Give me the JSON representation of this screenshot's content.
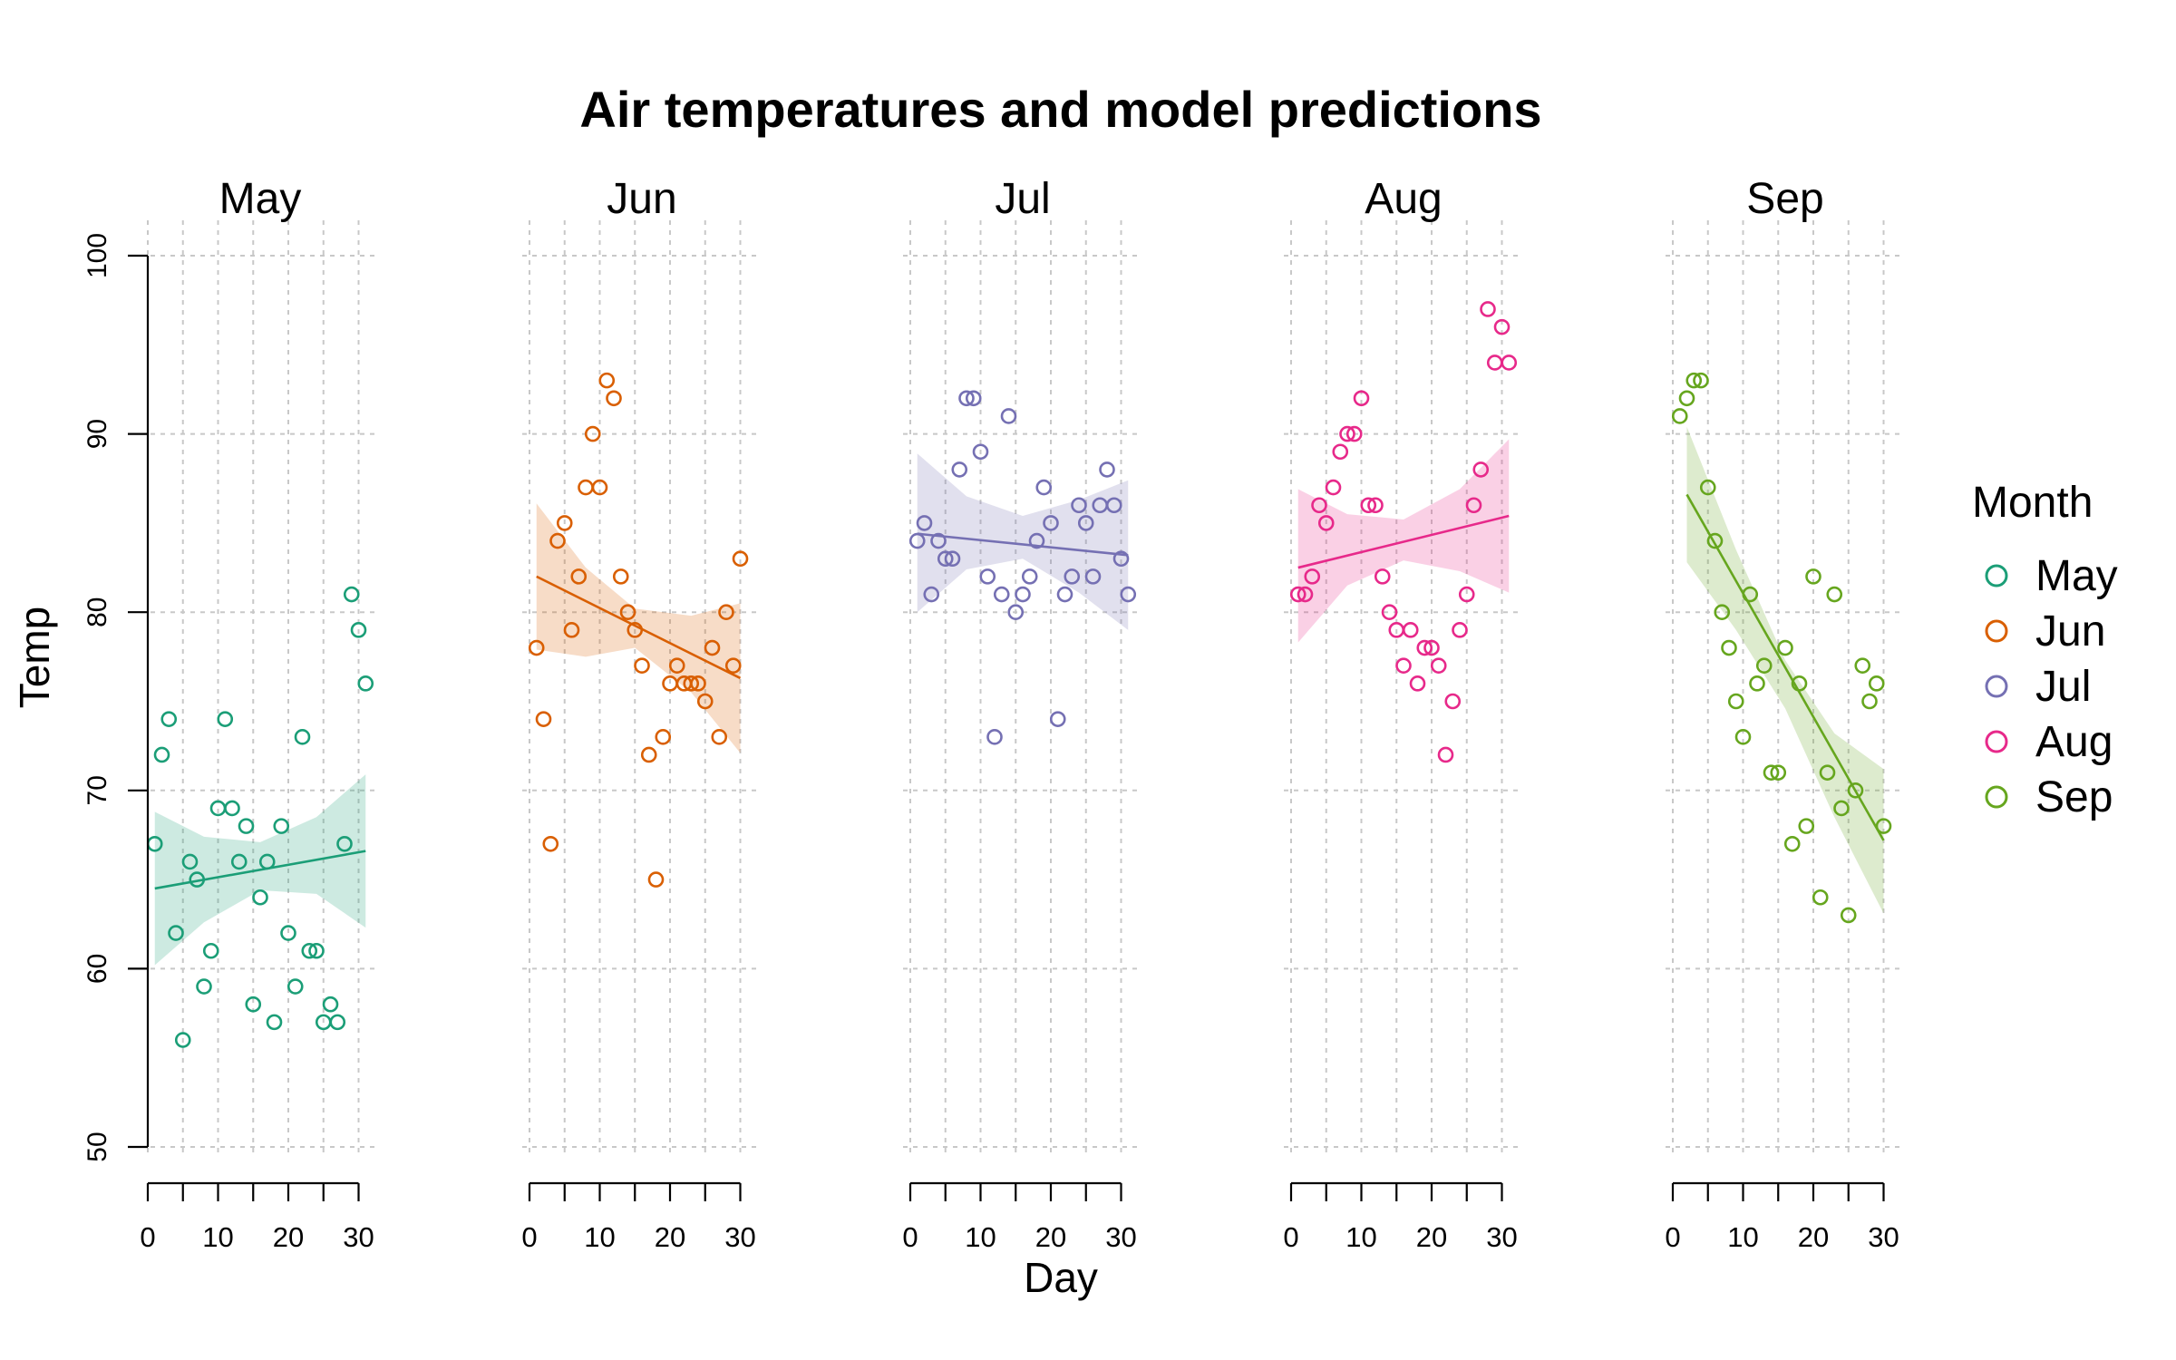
{
  "chart_data": {
    "type": "scatter",
    "title": "Air temperatures and model predictions",
    "xlabel": "Day",
    "ylabel": "Temp",
    "xlim": [
      0,
      31
    ],
    "ylim": [
      50,
      100
    ],
    "x_ticks": [
      0,
      10,
      20,
      30
    ],
    "y_ticks": [
      50,
      60,
      70,
      80,
      90,
      100
    ],
    "grid": true,
    "legend": {
      "title": "Month",
      "position": "right",
      "entries": [
        "May",
        "Jun",
        "Jul",
        "Aug",
        "Sep"
      ]
    },
    "panels": [
      {
        "name": "May",
        "color": "#1b9e77",
        "x": [
          1,
          2,
          3,
          4,
          5,
          6,
          7,
          8,
          9,
          10,
          11,
          12,
          13,
          14,
          15,
          16,
          17,
          18,
          19,
          20,
          21,
          22,
          23,
          24,
          25,
          26,
          27,
          28,
          29,
          30,
          31
        ],
        "y": [
          67,
          72,
          74,
          62,
          56,
          66,
          65,
          59,
          61,
          69,
          74,
          69,
          66,
          68,
          58,
          64,
          66,
          57,
          68,
          62,
          59,
          73,
          61,
          61,
          57,
          58,
          57,
          67,
          81,
          79,
          76
        ],
        "fit": {
          "x": [
            1,
            31
          ],
          "y": [
            64.5,
            66.6
          ]
        },
        "band": {
          "x": [
            1,
            8,
            16,
            24,
            31
          ],
          "upper": [
            68.8,
            67.4,
            67.1,
            68.5,
            70.9
          ],
          "lower": [
            60.2,
            62.6,
            64.4,
            64.2,
            62.3
          ]
        }
      },
      {
        "name": "Jun",
        "color": "#d95f02",
        "x": [
          1,
          2,
          3,
          4,
          5,
          6,
          7,
          8,
          9,
          10,
          11,
          12,
          13,
          14,
          15,
          16,
          17,
          18,
          19,
          20,
          21,
          22,
          23,
          24,
          25,
          26,
          27,
          28,
          29,
          30
        ],
        "y": [
          78,
          74,
          67,
          84,
          85,
          79,
          82,
          87,
          90,
          87,
          93,
          92,
          82,
          80,
          79,
          77,
          72,
          65,
          73,
          76,
          77,
          76,
          76,
          76,
          75,
          78,
          73,
          80,
          77,
          83
        ],
        "fit": {
          "x": [
            1,
            30
          ],
          "y": [
            82.0,
            76.3
          ]
        },
        "band": {
          "x": [
            1,
            8,
            15,
            23,
            30
          ],
          "upper": [
            86.1,
            82.5,
            80.2,
            79.8,
            80.5
          ],
          "lower": [
            77.9,
            77.5,
            78.0,
            75.5,
            72.1
          ]
        }
      },
      {
        "name": "Jul",
        "color": "#7570b3",
        "x": [
          1,
          2,
          3,
          4,
          5,
          6,
          7,
          8,
          9,
          10,
          11,
          12,
          13,
          14,
          15,
          16,
          17,
          18,
          19,
          20,
          21,
          22,
          23,
          24,
          25,
          26,
          27,
          28,
          29,
          30,
          31
        ],
        "y": [
          84,
          85,
          81,
          84,
          83,
          83,
          88,
          92,
          92,
          89,
          82,
          73,
          81,
          91,
          80,
          81,
          82,
          84,
          87,
          85,
          74,
          81,
          82,
          86,
          85,
          82,
          86,
          88,
          86,
          83,
          81
        ],
        "fit": {
          "x": [
            1,
            31
          ],
          "y": [
            84.4,
            83.2
          ]
        },
        "band": {
          "x": [
            1,
            8,
            16,
            24,
            31
          ],
          "upper": [
            88.9,
            86.5,
            85.4,
            86.3,
            87.4
          ],
          "lower": [
            80.0,
            82.4,
            83.0,
            81.1,
            79.0
          ]
        }
      },
      {
        "name": "Aug",
        "color": "#e7298a",
        "x": [
          1,
          2,
          3,
          4,
          5,
          6,
          7,
          8,
          9,
          10,
          11,
          12,
          13,
          14,
          15,
          16,
          17,
          18,
          19,
          20,
          21,
          22,
          23,
          24,
          25,
          26,
          27,
          28,
          29,
          30,
          31
        ],
        "y": [
          81,
          81,
          82,
          86,
          85,
          87,
          89,
          90,
          90,
          92,
          86,
          86,
          82,
          80,
          79,
          77,
          79,
          76,
          78,
          78,
          77,
          72,
          75,
          79,
          81,
          86,
          88,
          97,
          94,
          96,
          94
        ],
        "fit": {
          "x": [
            1,
            31
          ],
          "y": [
            82.5,
            85.4
          ]
        },
        "band": {
          "x": [
            1,
            8,
            16,
            24,
            31
          ],
          "upper": [
            86.9,
            85.5,
            85.2,
            86.9,
            89.7
          ],
          "lower": [
            78.3,
            81.5,
            82.9,
            82.3,
            81.1
          ]
        }
      },
      {
        "name": "Sep",
        "color": "#66a61e",
        "x": [
          1,
          2,
          3,
          4,
          5,
          6,
          7,
          8,
          9,
          10,
          11,
          12,
          13,
          14,
          15,
          16,
          17,
          18,
          19,
          20,
          21,
          22,
          23,
          24,
          25,
          26,
          27,
          28,
          29,
          30
        ],
        "y": [
          91,
          92,
          93,
          93,
          87,
          84,
          80,
          78,
          75,
          73,
          81,
          76,
          77,
          71,
          71,
          78,
          67,
          76,
          68,
          82,
          64,
          71,
          81,
          69,
          63,
          70,
          77,
          75,
          76,
          68
        ],
        "fit": {
          "x": [
            2,
            30
          ],
          "y": [
            86.6,
            67.2
          ]
        },
        "band": {
          "x": [
            2,
            9,
            16,
            23,
            30
          ],
          "upper": [
            90.4,
            83.5,
            77.3,
            73.2,
            71.2
          ],
          "lower": [
            82.8,
            79.0,
            74.6,
            68.5,
            63.1
          ]
        }
      }
    ]
  }
}
